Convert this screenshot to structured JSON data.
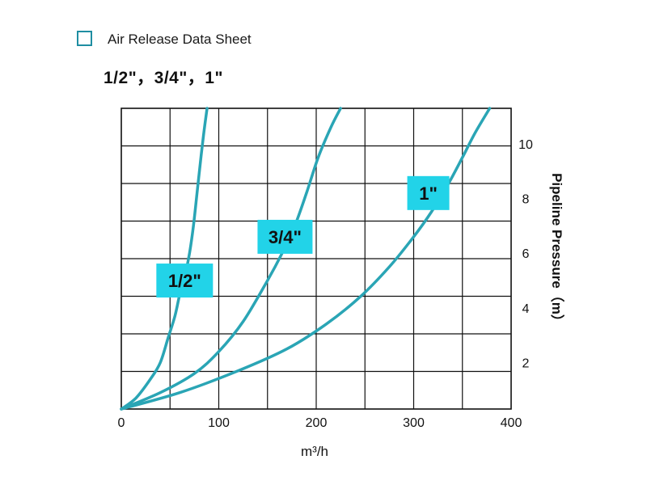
{
  "header": {
    "sheet_title": "Air Release Data Sheet",
    "sizes": "1/2\"，3/4\"，1\""
  },
  "colors": {
    "accent": "#2aa5b5",
    "callout_fill": "#22d3e8",
    "grid": "#111111"
  },
  "chart_data": {
    "type": "line",
    "title": "Air Release Data Sheet",
    "xlabel": "m³/h",
    "ylabel": "Pipeline Pressure（m）",
    "xlim": [
      0,
      400
    ],
    "ylim": [
      0.3,
      11.3
    ],
    "x_ticks": [
      0,
      100,
      200,
      300,
      400
    ],
    "y_ticks": [
      2,
      4,
      6,
      8,
      10
    ],
    "y_axis_position": "right",
    "grid": true,
    "series": [
      {
        "name": "1/2\"",
        "points": [
          [
            0,
            0.3
          ],
          [
            15,
            0.7
          ],
          [
            30,
            1.4
          ],
          [
            40,
            2.0
          ],
          [
            48,
            2.9
          ],
          [
            55,
            3.7
          ],
          [
            60,
            4.5
          ],
          [
            66,
            5.3
          ],
          [
            70,
            6.0
          ],
          [
            74,
            7.0
          ],
          [
            78,
            8.3
          ],
          [
            82,
            9.6
          ],
          [
            85,
            10.5
          ],
          [
            88,
            11.3
          ]
        ]
      },
      {
        "name": "3/4\"",
        "points": [
          [
            0,
            0.3
          ],
          [
            40,
            0.9
          ],
          [
            75,
            1.6
          ],
          [
            100,
            2.4
          ],
          [
            125,
            3.5
          ],
          [
            150,
            5.0
          ],
          [
            165,
            6.0
          ],
          [
            178,
            7.0
          ],
          [
            190,
            8.2
          ],
          [
            202,
            9.5
          ],
          [
            215,
            10.6
          ],
          [
            225,
            11.3
          ]
        ]
      },
      {
        "name": "1\"",
        "points": [
          [
            0,
            0.3
          ],
          [
            60,
            0.9
          ],
          [
            120,
            1.7
          ],
          [
            170,
            2.5
          ],
          [
            210,
            3.4
          ],
          [
            245,
            4.4
          ],
          [
            275,
            5.5
          ],
          [
            300,
            6.6
          ],
          [
            318,
            7.5
          ],
          [
            335,
            8.5
          ],
          [
            350,
            9.5
          ],
          [
            363,
            10.4
          ],
          [
            378,
            11.3
          ]
        ]
      }
    ],
    "annotations": [
      {
        "text": "1/2\"",
        "x": 65,
        "y": 5.0
      },
      {
        "text": "3/4\"",
        "x": 168,
        "y": 6.6
      },
      {
        "text": "1\"",
        "x": 315,
        "y": 8.2
      }
    ]
  }
}
